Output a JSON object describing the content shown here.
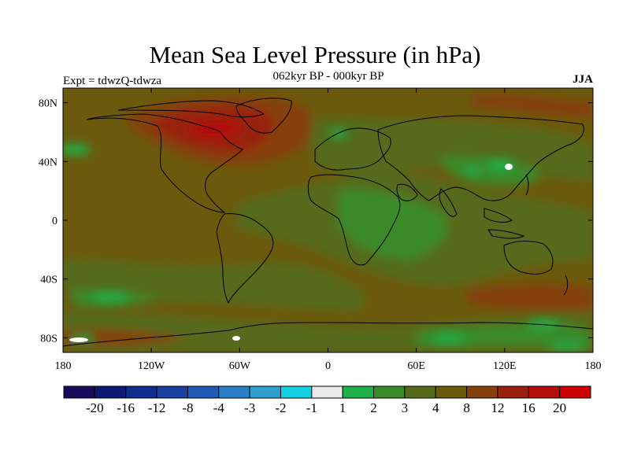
{
  "title": "Mean Sea Level Pressure (in hPa)",
  "subtitle": "062kyr BP - 000kyr BP",
  "left_label": "Expt = tdwzQ-tdwza",
  "right_label": "JJA",
  "x_ticks": [
    "180",
    "120W",
    "60W",
    "0",
    "60E",
    "120E",
    "180"
  ],
  "y_ticks": [
    "80N",
    "40N",
    "0",
    "40S",
    "80S"
  ],
  "colorbar": {
    "colors": [
      "#1a0a5c",
      "#0d1a73",
      "#0f2d8c",
      "#1a40a0",
      "#1f5bb4",
      "#2b7fc4",
      "#2fa0cf",
      "#14d0e0",
      "#eaeaea",
      "#1fb04a",
      "#3a8a2a",
      "#556b1b",
      "#6b5a0d",
      "#86400b",
      "#99200c",
      "#b3100c",
      "#cc0000"
    ],
    "labels": [
      "-20",
      "-16",
      "-12",
      "-8",
      "-4",
      "-3",
      "-2",
      "-1",
      "1",
      "2",
      "3",
      "4",
      "8",
      "12",
      "16",
      "20"
    ]
  }
}
